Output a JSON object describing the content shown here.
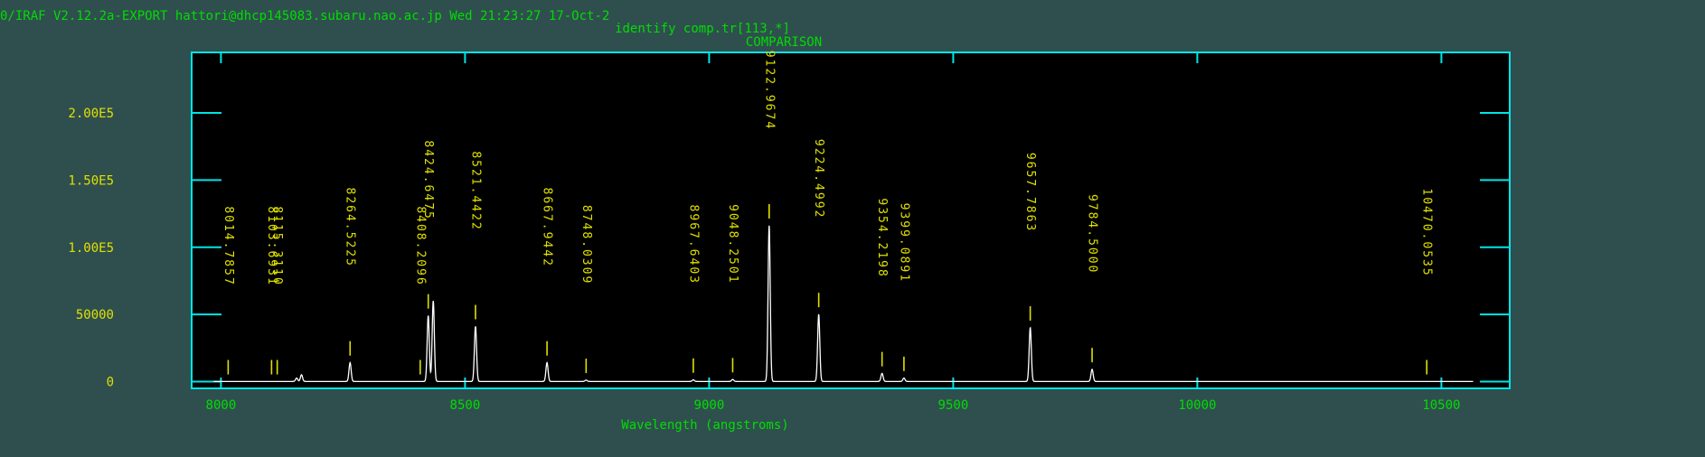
{
  "header": {
    "status_line": "0/IRAF V2.12.2a-EXPORT hattori@dhcp145083.subaru.nao.ac.jp Wed 21:23:27 17-Oct-2",
    "command": "identify comp.tr[113,*]",
    "title": "COMPARISON"
  },
  "colors": {
    "background": "#2f4f4f",
    "frame": "#00e5e5",
    "text": "#00dd00",
    "line_labels": "#e0e000",
    "spectrum": "#ffffff",
    "plot_background": "#000000"
  },
  "chart_data": {
    "type": "line",
    "title": "COMPARISON",
    "xlabel": "Wavelength (angstroms)",
    "ylabel": "",
    "xlim": [
      7940,
      10640
    ],
    "ylim": [
      -5000,
      245000
    ],
    "xticks": [
      8000,
      8500,
      9000,
      9500,
      10000,
      10500
    ],
    "xtick_labels": [
      "8000",
      "8500",
      "9000",
      "9500",
      "10000",
      "10500"
    ],
    "yticks": [
      0,
      50000,
      100000,
      150000,
      200000
    ],
    "ytick_labels": [
      "0",
      "50000",
      "1.00E5",
      "1.50E5",
      "2.00E5"
    ],
    "grid": false,
    "peaks": [
      {
        "x": 8155,
        "y": 2500
      },
      {
        "x": 8165,
        "y": 5000
      },
      {
        "x": 8264.5,
        "y": 14000
      },
      {
        "x": 8424.6,
        "y": 49000
      },
      {
        "x": 8434.9,
        "y": 60000
      },
      {
        "x": 8521.4,
        "y": 41000
      },
      {
        "x": 8667.9,
        "y": 14000
      },
      {
        "x": 8748,
        "y": 1000
      },
      {
        "x": 8967.6,
        "y": 1200
      },
      {
        "x": 9048.3,
        "y": 1500
      },
      {
        "x": 9122.97,
        "y": 116000
      },
      {
        "x": 9224.5,
        "y": 50000
      },
      {
        "x": 9354.2,
        "y": 6000
      },
      {
        "x": 9399.1,
        "y": 2500
      },
      {
        "x": 9657.8,
        "y": 40000
      },
      {
        "x": 9784.5,
        "y": 9000
      }
    ],
    "line_ids": [
      {
        "x": 8014.7857,
        "label": "8014.7857"
      },
      {
        "x": 8103.6931,
        "label": "8103.6931"
      },
      {
        "x": 8115.311,
        "label": "8115.3110"
      },
      {
        "x": 8264.5225,
        "label": "8264.5225"
      },
      {
        "x": 8408.2096,
        "label": "8408.2096"
      },
      {
        "x": 8424.6475,
        "label": "8424.6475"
      },
      {
        "x": 8521.4422,
        "label": "8521.4422"
      },
      {
        "x": 8667.9442,
        "label": "8667.9442"
      },
      {
        "x": 8748.0309,
        "label": "8748.0309"
      },
      {
        "x": 8967.6403,
        "label": "8967.6403"
      },
      {
        "x": 9048.2501,
        "label": "9048.2501"
      },
      {
        "x": 9122.9674,
        "label": "9122.9674"
      },
      {
        "x": 9224.4992,
        "label": "9224.4992"
      },
      {
        "x": 9354.2198,
        "label": "9354.2198"
      },
      {
        "x": 9399.0891,
        "label": "9399.0891"
      },
      {
        "x": 9657.7863,
        "label": "9657.7863"
      },
      {
        "x": 9784.5,
        "label": "9784.5000"
      },
      {
        "x": 10470.0535,
        "label": "10470.0535"
      }
    ]
  }
}
